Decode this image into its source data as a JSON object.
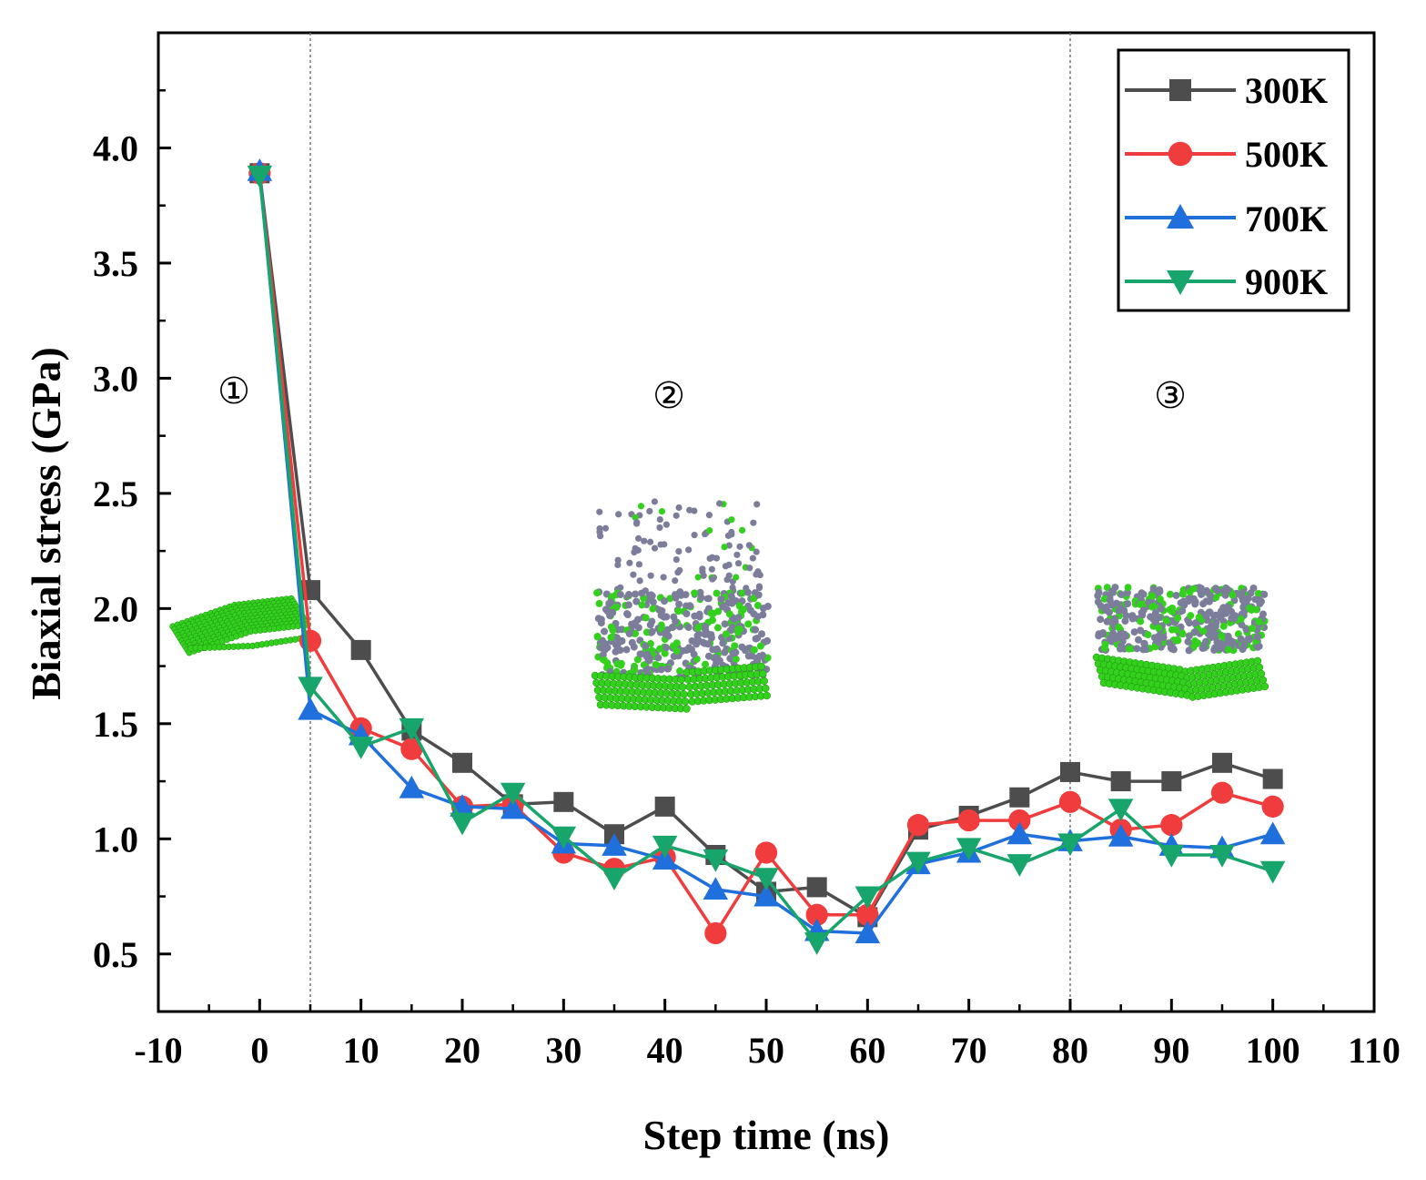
{
  "chart_data": {
    "type": "line",
    "title": "",
    "xlabel": "Step time (ns)",
    "ylabel": "Biaxial stress (GPa)",
    "xlim": [
      -10,
      110
    ],
    "ylim": [
      0.25,
      4.5
    ],
    "xticks": [
      -10,
      0,
      10,
      20,
      30,
      40,
      50,
      60,
      70,
      80,
      90,
      100,
      110
    ],
    "yticks": [
      0.5,
      1.0,
      1.5,
      2.0,
      2.5,
      3.0,
      3.5,
      4.0
    ],
    "xtick_labels": [
      "-10",
      "0",
      "10",
      "20",
      "30",
      "40",
      "50",
      "60",
      "70",
      "80",
      "90",
      "100",
      "110"
    ],
    "ytick_labels": [
      "0.5",
      "1.0",
      "1.5",
      "2.0",
      "2.5",
      "3.0",
      "3.5",
      "4.0"
    ],
    "vlines": [
      5,
      80
    ],
    "grid": false,
    "legend_position": "top-right",
    "x": [
      0,
      5,
      10,
      15,
      20,
      25,
      30,
      35,
      40,
      45,
      50,
      55,
      60,
      65,
      70,
      75,
      80,
      85,
      90,
      95,
      100
    ],
    "series": [
      {
        "name": "300K",
        "color": "#4d4d4d",
        "marker": "square",
        "values": [
          3.89,
          2.08,
          1.82,
          1.47,
          1.33,
          1.15,
          1.16,
          1.02,
          1.14,
          0.93,
          0.77,
          0.79,
          0.66,
          1.04,
          1.1,
          1.18,
          1.29,
          1.25,
          1.25,
          1.33,
          1.26
        ]
      },
      {
        "name": "500K",
        "color": "#f03c3c",
        "marker": "circle",
        "values": [
          3.89,
          1.86,
          1.48,
          1.39,
          1.14,
          1.15,
          0.94,
          0.87,
          0.92,
          0.59,
          0.94,
          0.67,
          0.67,
          1.06,
          1.08,
          1.08,
          1.16,
          1.04,
          1.06,
          1.2,
          1.14
        ]
      },
      {
        "name": "700K",
        "color": "#1f6fdc",
        "marker": "triangle-up",
        "values": [
          3.9,
          1.56,
          1.45,
          1.22,
          1.14,
          1.13,
          0.98,
          0.97,
          0.91,
          0.78,
          0.75,
          0.6,
          0.59,
          0.89,
          0.94,
          1.02,
          0.99,
          1.01,
          0.97,
          0.96,
          1.02
        ]
      },
      {
        "name": "900K",
        "color": "#17a56b",
        "marker": "triangle-down",
        "values": [
          3.88,
          1.66,
          1.4,
          1.48,
          1.07,
          1.2,
          1.01,
          0.83,
          0.97,
          0.91,
          0.83,
          0.55,
          0.75,
          0.9,
          0.96,
          0.89,
          0.98,
          1.13,
          0.93,
          0.93,
          0.86
        ]
      }
    ],
    "annotations": [
      "①",
      "②",
      "③"
    ]
  },
  "legend": {
    "items": [
      "300K",
      "500K",
      "700K",
      "900K"
    ]
  },
  "colors": {
    "atom_green": "#33d11e",
    "atom_grey": "#7b7d9a"
  }
}
